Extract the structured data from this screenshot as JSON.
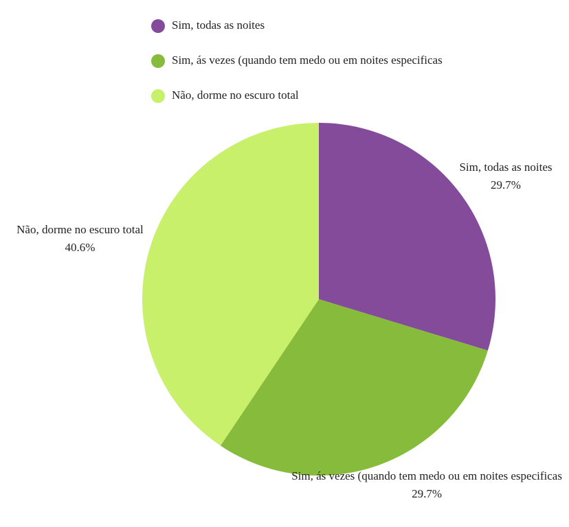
{
  "chart_data": {
    "type": "pie",
    "categories": [
      "Sim, todas as noites",
      "Sim, ás vezes (quando tem medo ou em noites especificas",
      "Não, dorme no escuro total"
    ],
    "values": [
      29.7,
      29.7,
      40.6
    ],
    "value_labels": [
      "29.7%",
      "29.7%",
      "40.6%"
    ],
    "colors": [
      "#834b99",
      "#86bb3c",
      "#c8f06a"
    ],
    "legend": "top"
  }
}
